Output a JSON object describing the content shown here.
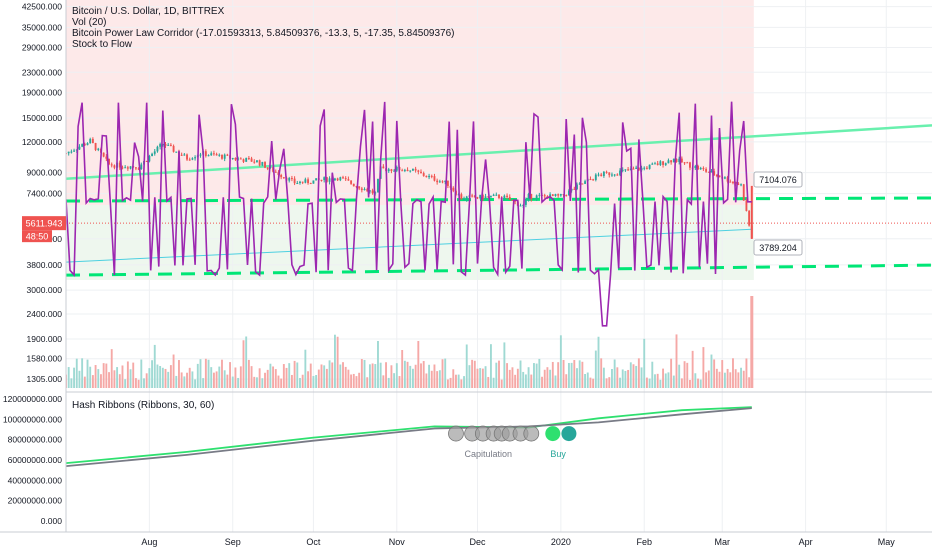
{
  "legend": {
    "main": "Bitcoin / U.S. Dollar, 1D, BITTREX",
    "vol": "Vol (20)",
    "power_law": "Bitcoin Power Law Corridor (-17.01593313, 5.84509376, -13.3, 5, -17.35, 5.84509376)",
    "s2f": "Stock to Flow"
  },
  "hash_ribbons_legend": "Hash Ribbons (Ribbons, 30, 60)",
  "colors": {
    "up": "#26a69a",
    "down": "#ef5350",
    "s2f": "#9c27b0",
    "corridor": "#00e676",
    "upper_line": "#69f0ae",
    "fill_red": "#fde9e9",
    "fill_green": "#eef7ee",
    "gray_ribbon": "#787b86",
    "green_ribbon": "#2ee06f",
    "buy_dot": "#26a69a"
  },
  "chart_data": [
    {
      "type": "candlestick",
      "title": "Bitcoin / U.S. Dollar, 1D, BITTREX",
      "y_scale": "log",
      "y_tick_labels": [
        "42500.000",
        "35000.000",
        "29000.000",
        "23000.000",
        "19000.000",
        "15000.000",
        "12000.000",
        "9000.000",
        "7400.000",
        "4850.000",
        "3800.000",
        "3000.000",
        "2400.000",
        "1900.000",
        "1580.000",
        "1305.000"
      ],
      "y_ticks": [
        42500,
        35000,
        29000,
        23000,
        19000,
        15000,
        12000,
        9000,
        7400,
        4850,
        3800,
        3000,
        2400,
        1900,
        1580,
        1305
      ],
      "x_tick_labels": [
        "Aug",
        "Sep",
        "Oct",
        "Nov",
        "Dec",
        "2020",
        "Feb",
        "Mar",
        "Apr",
        "May"
      ],
      "x_ticks": [
        "2019-08-01",
        "2019-09-01",
        "2019-10-01",
        "2019-11-01",
        "2019-12-01",
        "2020-01-01",
        "2020-02-01",
        "2020-03-01",
        "2020-04-01",
        "2020-05-01"
      ],
      "x_range": [
        "2019-07-01",
        "2020-05-18"
      ],
      "price_path": {
        "dates": [
          "2019-07-01",
          "2019-07-10",
          "2019-07-17",
          "2019-07-28",
          "2019-08-06",
          "2019-08-15",
          "2019-08-20",
          "2019-09-01",
          "2019-09-10",
          "2019-09-24",
          "2019-10-01",
          "2019-10-10",
          "2019-10-24",
          "2019-10-26",
          "2019-11-05",
          "2019-11-20",
          "2019-11-25",
          "2019-12-10",
          "2019-12-18",
          "2019-12-20",
          "2020-01-01",
          "2020-01-08",
          "2020-01-15",
          "2020-02-01",
          "2020-02-12",
          "2020-02-28",
          "2020-03-08",
          "2020-03-12"
        ],
        "close": [
          10800,
          12100,
          9700,
          9500,
          11800,
          10300,
          10800,
          10300,
          10000,
          8200,
          8300,
          8600,
          7400,
          9300,
          9300,
          8100,
          7100,
          7200,
          6600,
          7200,
          7200,
          8000,
          8800,
          9400,
          10200,
          8800,
          8000,
          4850
        ]
      },
      "last_price_label": "5611.943",
      "countdown_label": "48:50",
      "s2f": {
        "description": "Stock to Flow oscillating model line",
        "base": 6900,
        "range": [
          3450,
          17500
        ]
      },
      "power_law_corridor": {
        "upper": {
          "start": [
            "2019-07-01",
            8500
          ],
          "end": [
            "2020-05-18",
            14000
          ]
        },
        "dashed_top": {
          "start": [
            "2019-07-01",
            6900
          ],
          "end": [
            "2020-05-18",
            7100
          ],
          "label": "7104.076"
        },
        "dashed_bottom": {
          "start": [
            "2019-07-01",
            3450
          ],
          "end": [
            "2020-05-18",
            3790
          ],
          "label": "3789.204"
        },
        "lower": {
          "start": [
            "2019-07-01",
            3900
          ],
          "end": [
            "2020-03-12",
            5300
          ]
        }
      },
      "volume_note": "Vol (20) histogram under price"
    },
    {
      "type": "line",
      "title": "Hash Ribbons (Ribbons, 30, 60)",
      "y_tick_labels": [
        "120000000.000",
        "100000000.000",
        "80000000.000",
        "60000000.000",
        "40000000.000",
        "20000000.000",
        "0.000"
      ],
      "y_ticks": [
        120000000,
        100000000,
        80000000,
        60000000,
        40000000,
        20000000,
        0
      ],
      "series": [
        {
          "color": "#2ee06f",
          "x": [
            "2019-07-01",
            "2019-08-15",
            "2019-10-01",
            "2019-11-15",
            "2019-12-20",
            "2020-01-15",
            "2020-02-15",
            "2020-03-12"
          ],
          "y": [
            57000000,
            68000000,
            82000000,
            93000000,
            92000000,
            101000000,
            109000000,
            112000000
          ]
        },
        {
          "color": "#787b86",
          "x": [
            "2019-07-01",
            "2019-08-15",
            "2019-10-01",
            "2019-11-15",
            "2019-12-20",
            "2020-01-15",
            "2020-02-15",
            "2020-03-12"
          ],
          "y": [
            54000000,
            65000000,
            79000000,
            91000000,
            93000000,
            97000000,
            105000000,
            111000000
          ]
        }
      ],
      "markers": {
        "capitulation_label": "Capitulation",
        "buy_label": "Buy",
        "capitulation_dates": [
          "2019-11-23",
          "2019-11-29",
          "2019-12-03",
          "2019-12-07",
          "2019-12-10",
          "2019-12-13",
          "2019-12-17",
          "2019-12-21"
        ],
        "buy_dates": [
          "2019-12-29",
          "2020-01-04"
        ],
        "value": 86000000
      }
    }
  ]
}
